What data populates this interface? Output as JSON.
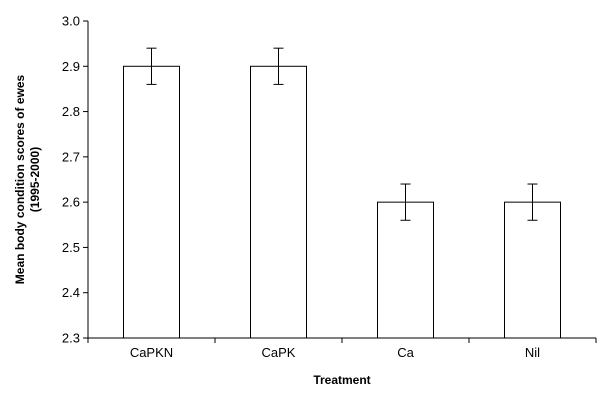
{
  "chart_data": {
    "type": "bar",
    "categories": [
      "CaPKN",
      "CaPK",
      "Ca",
      "Nil"
    ],
    "values": [
      2.9,
      2.9,
      2.6,
      2.6
    ],
    "errors": [
      0.04,
      0.04,
      0.04,
      0.04
    ],
    "xlabel": "Treatment",
    "ylabel_lines": [
      "Mean body condition scores of ewes",
      "(1995-2000)"
    ],
    "ylim": [
      2.3,
      3.0
    ],
    "yticks": [
      2.3,
      2.4,
      2.5,
      2.6,
      2.7,
      2.8,
      2.9,
      3.0
    ],
    "ytick_labels": [
      "2.3",
      "2.4",
      "2.5",
      "2.6",
      "2.7",
      "2.8",
      "2.9",
      "3.0"
    ],
    "grid": false,
    "bar_fill": "#ffffff",
    "bar_stroke": "#000000"
  }
}
